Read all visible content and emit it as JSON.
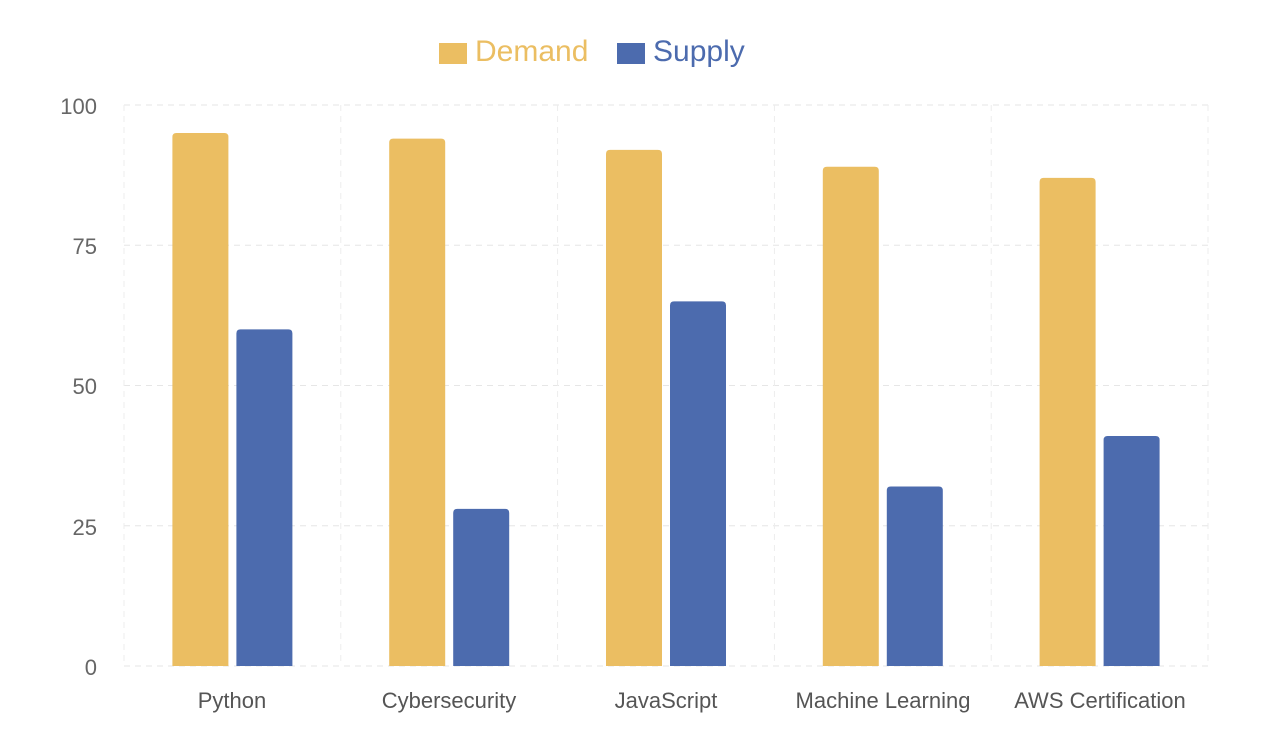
{
  "chart_data": {
    "type": "bar",
    "title": "",
    "xlabel": "",
    "ylabel": "",
    "categories": [
      "Python",
      "Cybersecurity",
      "JavaScript",
      "Machine Learning",
      "AWS Certification"
    ],
    "series": [
      {
        "name": "Demand",
        "color": "#EBBE62",
        "values": [
          95,
          94,
          92,
          89,
          87
        ]
      },
      {
        "name": "Supply",
        "color": "#4C6BAE",
        "values": [
          60,
          28,
          65,
          32,
          41
        ]
      }
    ],
    "ylim": [
      0,
      100
    ],
    "yticks": [
      "0",
      "25",
      "50",
      "75",
      "100"
    ],
    "grid": true,
    "legend_position": "top-center"
  }
}
